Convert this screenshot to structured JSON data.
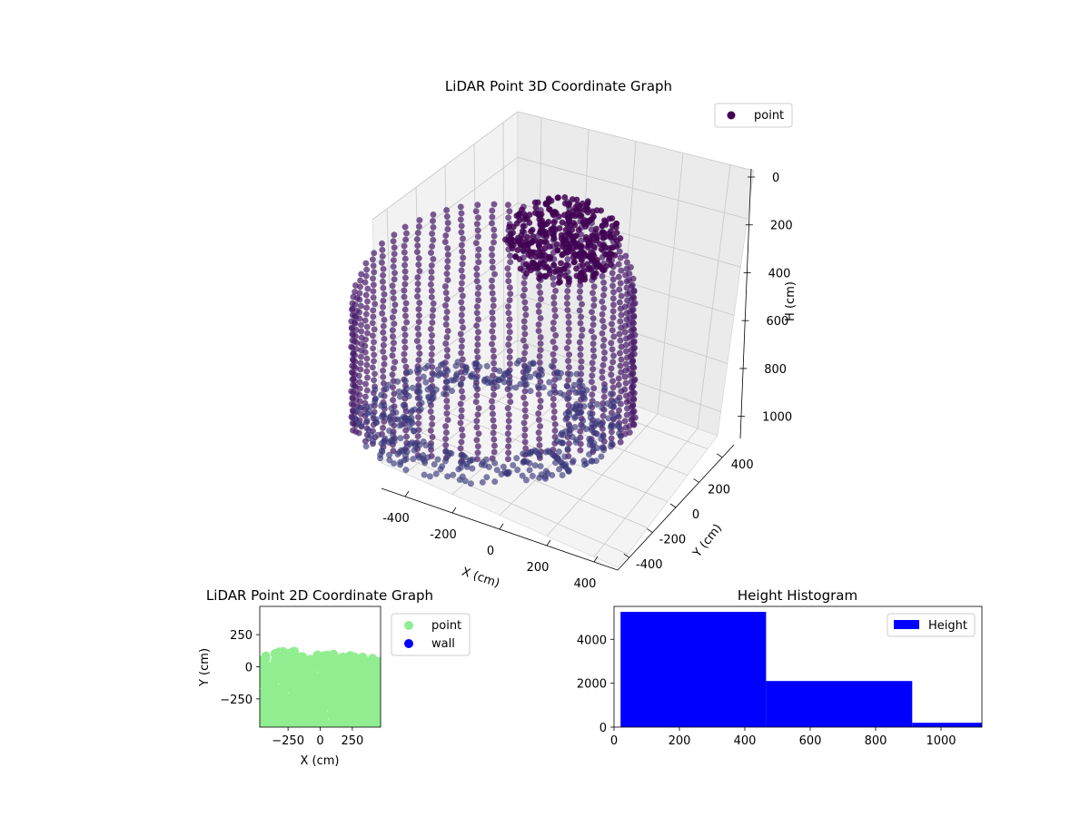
{
  "chart_data": [
    {
      "type": "scatter3d",
      "title": "LiDAR Point 3D Coordinate Graph",
      "xlabel": "X (cm)",
      "ylabel": "Y (cm)",
      "zlabel": "H (cm)",
      "xlim": [
        -500,
        500
      ],
      "ylim": [
        -500,
        500
      ],
      "zlim": [
        0,
        1100
      ],
      "z_inverted": true,
      "x_ticks": [
        "-400",
        "-200",
        "0",
        "200",
        "400"
      ],
      "y_ticks": [
        "-400",
        "-200",
        "0",
        "200",
        "400"
      ],
      "z_ticks": [
        "0",
        "200",
        "400",
        "600",
        "800",
        "1000"
      ],
      "legend": {
        "placement": "top-right",
        "entries": [
          {
            "label": "point",
            "color": "#440154"
          }
        ]
      },
      "colormap": "viridis",
      "grid": true
    },
    {
      "type": "scatter",
      "title": "LiDAR Point 2D Coordinate Graph",
      "xlabel": "X (cm)",
      "ylabel": "Y (cm)",
      "xlim": [
        -470,
        470
      ],
      "ylim": [
        -470,
        470
      ],
      "x_ticks": [
        "−250",
        "0",
        "250"
      ],
      "y_ticks": [
        "250",
        "0",
        "−250"
      ],
      "legend": {
        "placement": "outside-right",
        "entries": [
          {
            "label": "point",
            "color": "#90ee90"
          },
          {
            "label": "wall",
            "color": "#0000ff"
          }
        ]
      },
      "grid": false
    },
    {
      "type": "bar",
      "title": "Height Histogram",
      "bins": [
        {
          "start": 20,
          "end": 465,
          "count": 5250
        },
        {
          "start": 465,
          "end": 912,
          "count": 2100
        },
        {
          "start": 912,
          "end": 1125,
          "count": 200
        }
      ],
      "xlim": [
        0,
        1125
      ],
      "ylim": [
        0,
        5500
      ],
      "x_ticks": [
        "0",
        "200",
        "400",
        "600",
        "800",
        "1000"
      ],
      "y_ticks": [
        "0",
        "2000",
        "4000"
      ],
      "legend": {
        "placement": "top-right",
        "entries": [
          {
            "label": "Height",
            "color": "#0000ff"
          }
        ]
      },
      "color": "#0000ff",
      "grid": false
    }
  ]
}
